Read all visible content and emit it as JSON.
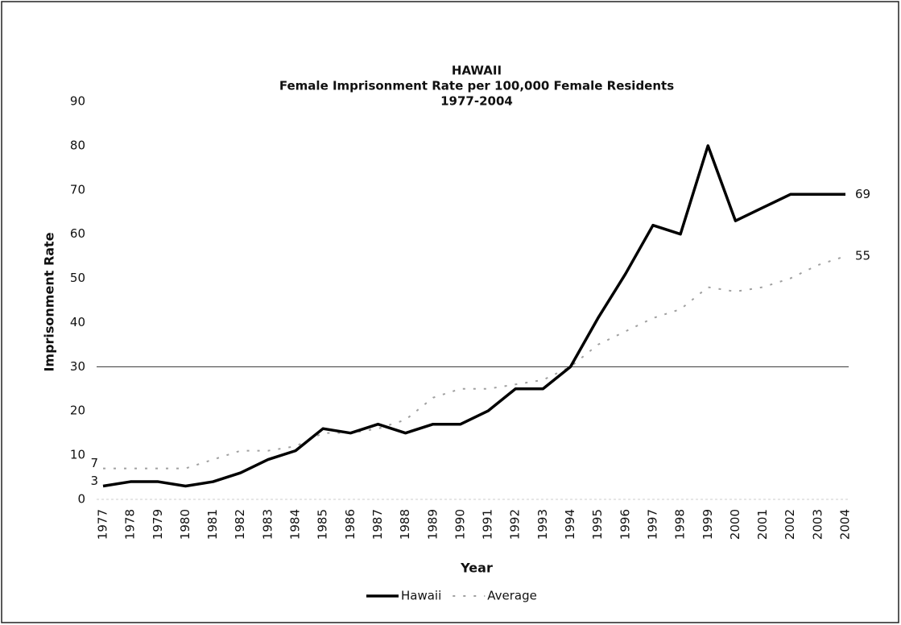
{
  "chart_data": {
    "type": "line",
    "title": [
      "HAWAII",
      "Female Imprisonment Rate per 100,000 Female Residents",
      "1977-2004"
    ],
    "x_label": "Year",
    "y_label": "Imprisonment Rate",
    "categories": [
      "1977",
      "1978",
      "1979",
      "1980",
      "1981",
      "1982",
      "1983",
      "1984",
      "1985",
      "1986",
      "1987",
      "1988",
      "1989",
      "1990",
      "1991",
      "1992",
      "1993",
      "1994",
      "1995",
      "1996",
      "1997",
      "1998",
      "1999",
      "2000",
      "2001",
      "2002",
      "2003",
      "2004"
    ],
    "series": [
      {
        "name": "Hawaii",
        "color": "#000000",
        "style": "solid",
        "values": [
          3,
          4,
          4,
          3,
          4,
          6,
          9,
          11,
          16,
          15,
          17,
          15,
          17,
          17,
          20,
          25,
          25,
          30,
          41,
          51,
          62,
          60,
          80,
          63,
          66,
          69,
          69,
          69
        ]
      },
      {
        "name": "Average",
        "color": "#a0a0a0",
        "style": "dashed",
        "values": [
          7,
          7,
          7,
          7,
          9,
          11,
          11,
          12,
          15,
          15,
          16,
          18,
          23,
          25,
          25,
          26,
          27,
          30,
          35,
          38,
          41,
          43,
          48,
          47,
          48,
          50,
          53,
          55
        ]
      }
    ],
    "ylim": [
      0,
      90
    ],
    "yticks": [
      0,
      10,
      20,
      30,
      40,
      50,
      60,
      70,
      80,
      90
    ],
    "reference_line": 30,
    "end_labels": true,
    "legend": "bottom"
  }
}
